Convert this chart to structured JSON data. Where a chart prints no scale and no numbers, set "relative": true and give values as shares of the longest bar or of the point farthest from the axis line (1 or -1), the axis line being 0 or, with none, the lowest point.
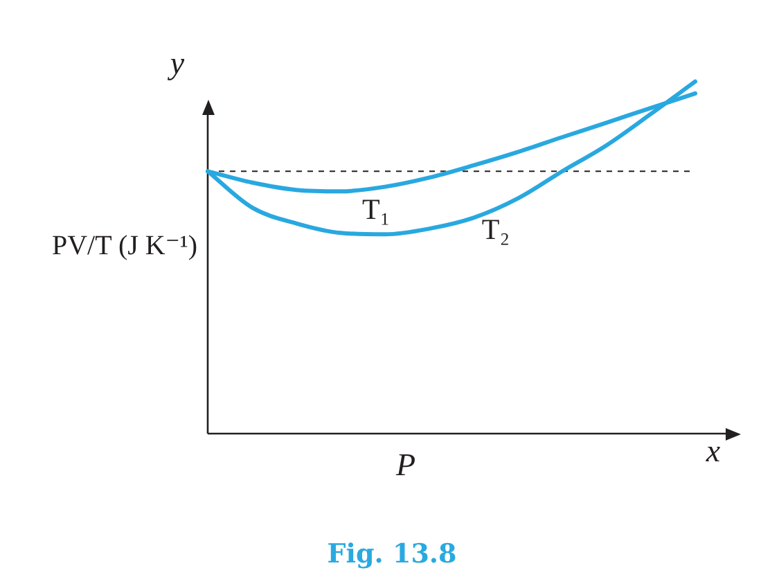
{
  "chart_data": {
    "type": "line",
    "relative": true,
    "xlabel": "P",
    "ylabel": "PV/T (J K⁻¹)",
    "annotations": [
      "y",
      "x",
      "Fig. 13.8"
    ],
    "categories": [
      null,
      null,
      null,
      null,
      null,
      null,
      null,
      null,
      null,
      null,
      null,
      null
    ],
    "series": [
      {
        "name": "T₁",
        "color": "#29a8e0",
        "values": [
          0.745,
          0.713,
          0.692,
          0.688,
          0.701,
          0.727,
          0.762,
          0.8,
          0.842,
          0.883,
          0.925,
          0.966
        ]
      },
      {
        "name": "T₂",
        "color": "#29a8e0",
        "values": [
          0.745,
          0.642,
          0.597,
          0.57,
          0.566,
          0.582,
          0.613,
          0.668,
          0.745,
          0.819,
          0.908,
          1
        ]
      }
    ],
    "ref_lines": [
      {
        "axis": "y",
        "value": 0.745,
        "color": "#231f20",
        "line_style": "dashed"
      }
    ],
    "marker": "none",
    "legend": false
  }
}
